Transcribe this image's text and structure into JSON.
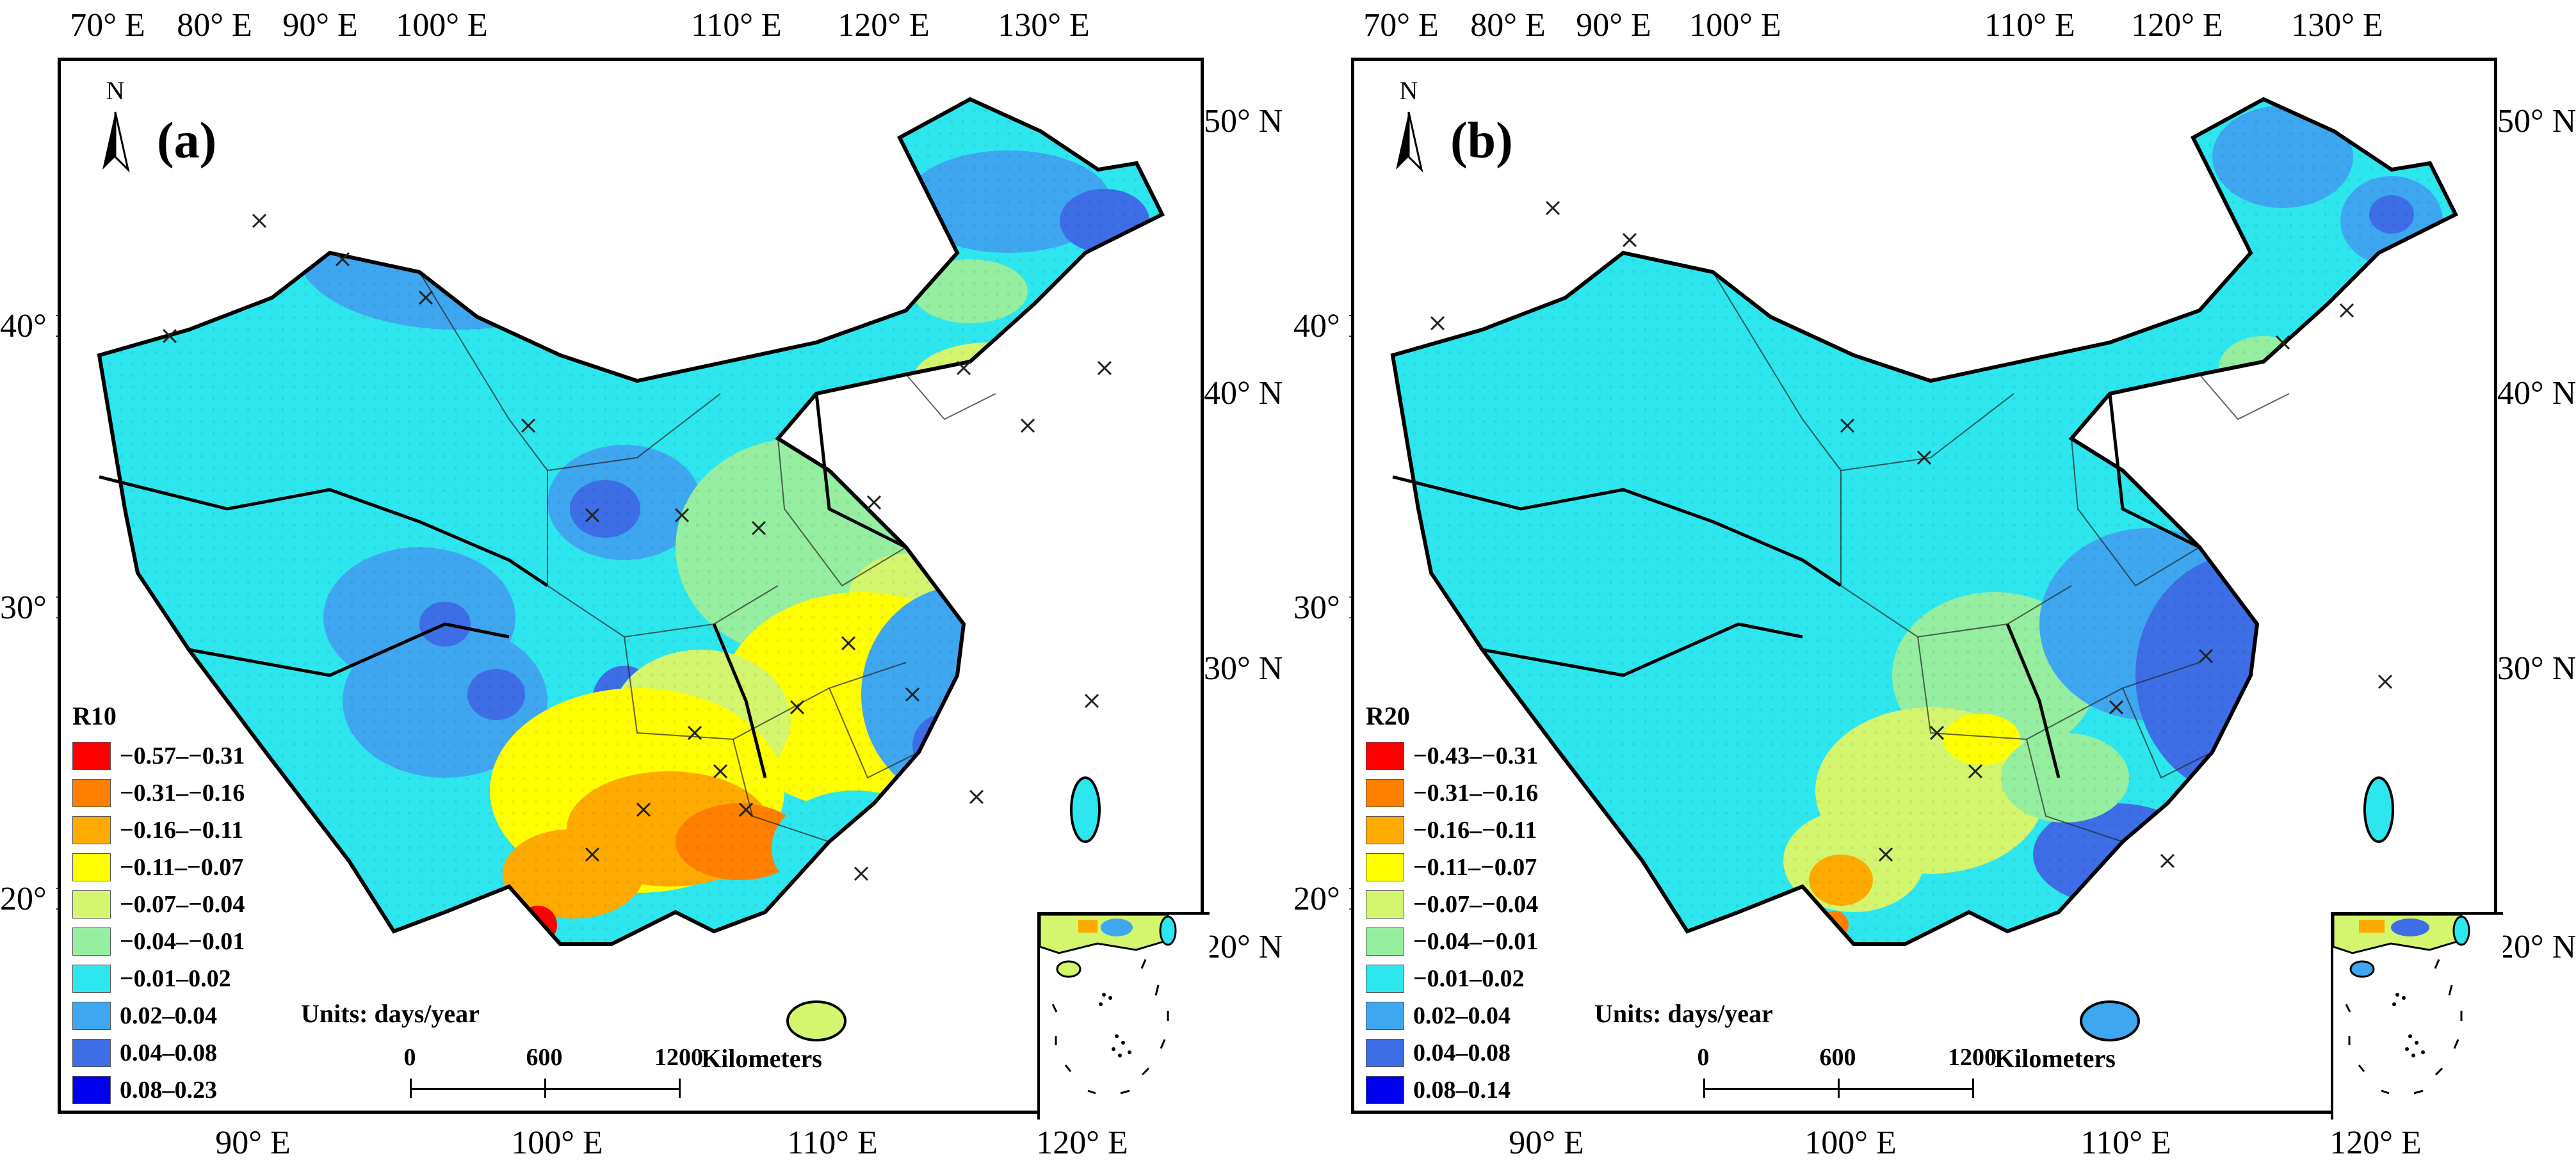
{
  "panels": [
    {
      "id": "a",
      "label": "(a)",
      "legend_title": "R10",
      "legend_items": [
        {
          "range": "−0.57–−0.31",
          "color": "#ff0000"
        },
        {
          "range": "−0.31–−0.16",
          "color": "#ff7f00"
        },
        {
          "range": "−0.16–−0.11",
          "color": "#ffaa00"
        },
        {
          "range": "−0.11–−0.07",
          "color": "#ffff00"
        },
        {
          "range": "−0.07–−0.04",
          "color": "#d4f56e"
        },
        {
          "range": "−0.04–−0.01",
          "color": "#96eea0"
        },
        {
          "range": "−0.01–0.02",
          "color": "#2ee6ee"
        },
        {
          "range": "0.02–0.04",
          "color": "#3fa6f0"
        },
        {
          "range": "0.04–0.08",
          "color": "#3d6ee6"
        },
        {
          "range": "0.08–0.23",
          "color": "#0000ee"
        }
      ]
    },
    {
      "id": "b",
      "label": "(b)",
      "legend_title": "R20",
      "legend_items": [
        {
          "range": "−0.43–−0.31",
          "color": "#ff0000"
        },
        {
          "range": "−0.31–−0.16",
          "color": "#ff7f00"
        },
        {
          "range": "−0.16–−0.11",
          "color": "#ffaa00"
        },
        {
          "range": "−0.11–−0.07",
          "color": "#ffff00"
        },
        {
          "range": "−0.07–−0.04",
          "color": "#d4f56e"
        },
        {
          "range": "−0.04–−0.01",
          "color": "#96eea0"
        },
        {
          "range": "−0.01–0.02",
          "color": "#2ee6ee"
        },
        {
          "range": "0.02–0.04",
          "color": "#3fa6f0"
        },
        {
          "range": "0.04–0.08",
          "color": "#3d6ee6"
        },
        {
          "range": "0.08–0.14",
          "color": "#0000ee"
        }
      ]
    }
  ],
  "axes": {
    "top_ticks": [
      "70° E",
      "80° E",
      "90° E",
      "100° E",
      "110° E",
      "120° E",
      "130° E"
    ],
    "bottom_ticks": [
      "90° E",
      "100° E",
      "110° E",
      "120° E"
    ],
    "left_ticks": [
      "40° N",
      "30° N",
      "20° N"
    ],
    "right_ticks": [
      "50° N",
      "40° N",
      "30° N",
      "20° N"
    ]
  },
  "north_label": "N",
  "units": "Units: days/year",
  "scale": {
    "labels": [
      "0",
      "600",
      "1200"
    ],
    "unit": "Kilometers"
  }
}
